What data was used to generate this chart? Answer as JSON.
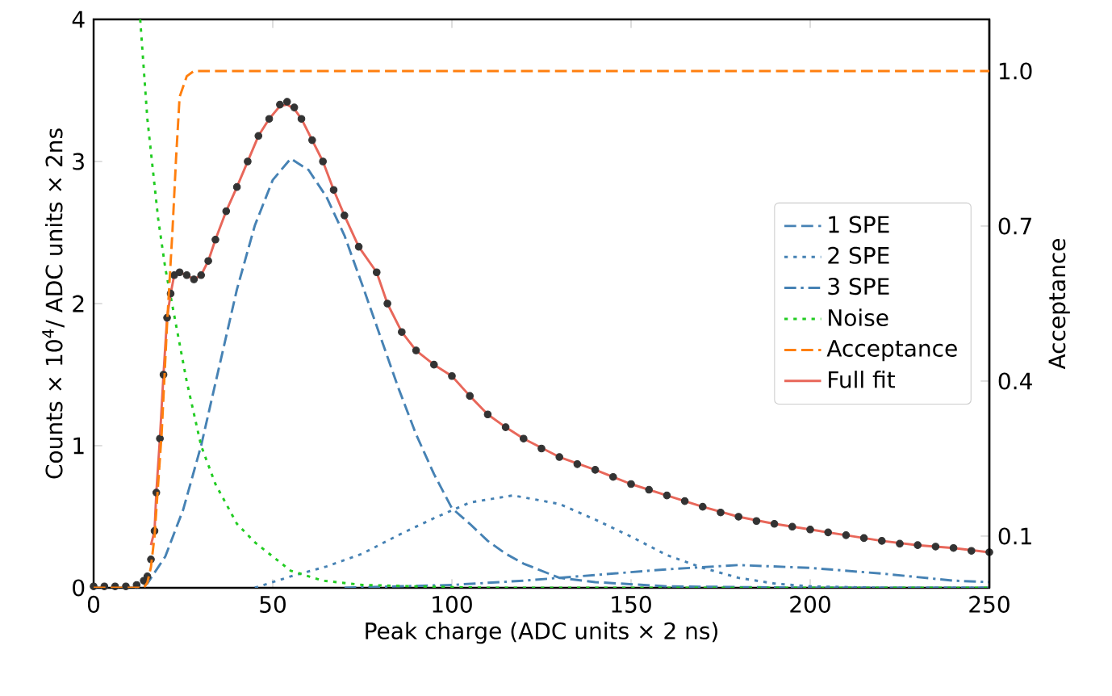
{
  "chart_data": {
    "type": "line",
    "xlabel": "Peak charge (ADC units × 2 ns)",
    "ylabel": "Counts × 10$^{4}$/ ADC units × 2ns",
    "y2label": "Acceptance",
    "xlim": [
      0,
      250
    ],
    "xticks": [
      0,
      50,
      100,
      150,
      200,
      250
    ],
    "ylim": [
      0,
      4
    ],
    "yticks": [
      0,
      1,
      2,
      3,
      4
    ],
    "y2lim": [
      0,
      1.1
    ],
    "y2ticks": [
      0.1,
      0.4,
      0.7,
      {
        "value": 1.0,
        "label": "1.0"
      }
    ],
    "legend": "right",
    "series": [
      {
        "type": "scatter",
        "marker": "circle",
        "color": "#333333",
        "x": [
          0,
          3,
          6,
          9,
          12,
          14,
          15,
          16,
          17,
          17.5,
          18.5,
          19.5,
          20.5,
          21.5,
          22.5,
          24,
          26,
          28,
          30,
          32,
          34,
          37,
          40,
          43,
          46,
          49,
          52,
          54,
          56,
          58,
          61,
          64,
          67,
          70,
          74,
          79,
          82,
          86,
          90,
          95,
          100,
          105,
          110,
          115,
          120,
          125,
          130,
          135,
          140,
          145,
          150,
          155,
          160,
          165,
          170,
          175,
          180,
          185,
          190,
          195,
          200,
          205,
          210,
          215,
          220,
          225,
          230,
          235,
          240,
          245,
          250
        ],
        "values": [
          0.01,
          0.01,
          0.01,
          0.01,
          0.02,
          0.05,
          0.08,
          0.2,
          0.4,
          0.67,
          1.05,
          1.5,
          1.9,
          2.07,
          2.2,
          2.22,
          2.2,
          2.17,
          2.2,
          2.3,
          2.45,
          2.65,
          2.82,
          3.0,
          3.18,
          3.3,
          3.4,
          3.42,
          3.38,
          3.3,
          3.15,
          3.0,
          2.8,
          2.62,
          2.4,
          2.22,
          2.0,
          1.8,
          1.67,
          1.57,
          1.49,
          1.35,
          1.22,
          1.13,
          1.05,
          0.98,
          0.92,
          0.87,
          0.83,
          0.78,
          0.73,
          0.69,
          0.65,
          0.61,
          0.57,
          0.53,
          0.5,
          0.47,
          0.45,
          0.43,
          0.41,
          0.39,
          0.37,
          0.35,
          0.33,
          0.31,
          0.3,
          0.29,
          0.28,
          0.26,
          0.25
        ]
      },
      {
        "name": "1 SPE",
        "color": "#4682b4",
        "line_style": "dashed",
        "x": [
          0,
          13,
          15,
          20,
          25,
          30,
          35,
          40,
          45,
          50,
          55,
          60,
          65,
          70,
          75,
          80,
          85,
          90,
          95,
          100,
          105,
          110,
          115,
          120,
          130,
          140,
          160,
          200,
          250
        ],
        "values": [
          0,
          0,
          0.03,
          0.22,
          0.55,
          1.0,
          1.55,
          2.1,
          2.55,
          2.87,
          3.02,
          2.94,
          2.75,
          2.48,
          2.13,
          1.77,
          1.41,
          1.08,
          0.8,
          0.56,
          0.45,
          0.33,
          0.24,
          0.17,
          0.07,
          0.04,
          0.01,
          0,
          0
        ]
      },
      {
        "name": "2 SPE",
        "color": "#4682b4",
        "line_style": "dotted",
        "x": [
          45,
          55,
          65,
          75,
          85,
          95,
          105,
          117,
          130,
          140,
          150,
          160,
          170,
          180,
          190,
          200,
          220,
          250
        ],
        "values": [
          0,
          0.08,
          0.15,
          0.24,
          0.37,
          0.49,
          0.6,
          0.65,
          0.59,
          0.48,
          0.36,
          0.23,
          0.14,
          0.07,
          0.03,
          0.01,
          0,
          0
        ]
      },
      {
        "name": "3 SPE",
        "color": "#4682b4",
        "line_style": "dashdot",
        "x": [
          70,
          100,
          120,
          140,
          160,
          180,
          200,
          220,
          240,
          250
        ],
        "values": [
          0,
          0.02,
          0.05,
          0.09,
          0.13,
          0.16,
          0.14,
          0.1,
          0.05,
          0.04
        ]
      },
      {
        "name": "Noise",
        "color": "#22cc22",
        "line_style": "dotted",
        "x": [
          13,
          15,
          18,
          20,
          23,
          26,
          30,
          34,
          40,
          45,
          49,
          55,
          64,
          75,
          90,
          110,
          150,
          250
        ],
        "values": [
          4.0,
          3.3,
          2.6,
          2.25,
          1.85,
          1.45,
          1.0,
          0.73,
          0.45,
          0.32,
          0.24,
          0.12,
          0.05,
          0.02,
          0.01,
          0,
          0,
          0
        ]
      },
      {
        "name": "Acceptance",
        "color": "#ff7f0e",
        "line_style": "dashed",
        "axis": "y2",
        "x": [
          0,
          14,
          15,
          16,
          17,
          19,
          20.5,
          22,
          23,
          24,
          26,
          28,
          250
        ],
        "values": [
          0,
          0,
          0.01,
          0.04,
          0.1,
          0.3,
          0.51,
          0.69,
          0.83,
          0.95,
          0.99,
          1.0,
          1.0
        ]
      },
      {
        "name": "Full fit",
        "color": "#e8675a",
        "line_style": "solid",
        "x": [
          16,
          17,
          17.5,
          18.5,
          19.5,
          20.5,
          21.5,
          22.5,
          24,
          26,
          28,
          30,
          32,
          34,
          37,
          40,
          43,
          46,
          49,
          52,
          54,
          56,
          58,
          61,
          64,
          67,
          70,
          74,
          79,
          82,
          86,
          90,
          95,
          100,
          105,
          110,
          115,
          120,
          130,
          140,
          150,
          160,
          170,
          180,
          190,
          200,
          210,
          220,
          230,
          240,
          250
        ],
        "values": [
          0.3,
          0.4,
          0.67,
          1.05,
          1.5,
          1.9,
          2.07,
          2.2,
          2.22,
          2.2,
          2.17,
          2.2,
          2.3,
          2.45,
          2.65,
          2.82,
          3.0,
          3.18,
          3.3,
          3.39,
          3.4,
          3.37,
          3.3,
          3.15,
          3.0,
          2.8,
          2.62,
          2.4,
          2.22,
          2.0,
          1.8,
          1.67,
          1.57,
          1.49,
          1.35,
          1.22,
          1.13,
          1.05,
          0.92,
          0.83,
          0.73,
          0.65,
          0.57,
          0.5,
          0.45,
          0.41,
          0.37,
          0.33,
          0.3,
          0.28,
          0.25
        ]
      }
    ]
  }
}
